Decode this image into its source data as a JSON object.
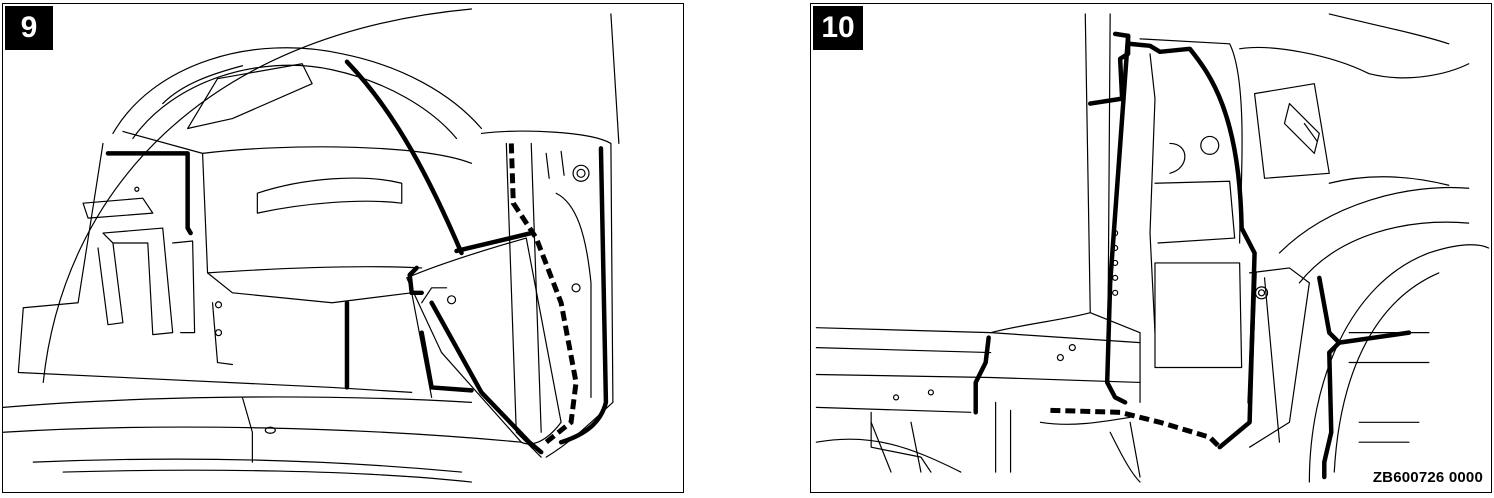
{
  "panels": [
    {
      "number": "9",
      "subject": "rear wheel housing inner panel with sealer lines"
    },
    {
      "number": "10",
      "subject": "rocker, pillar and wheel arch with sealer lines"
    }
  ],
  "figure_code": "ZB600726 0000"
}
